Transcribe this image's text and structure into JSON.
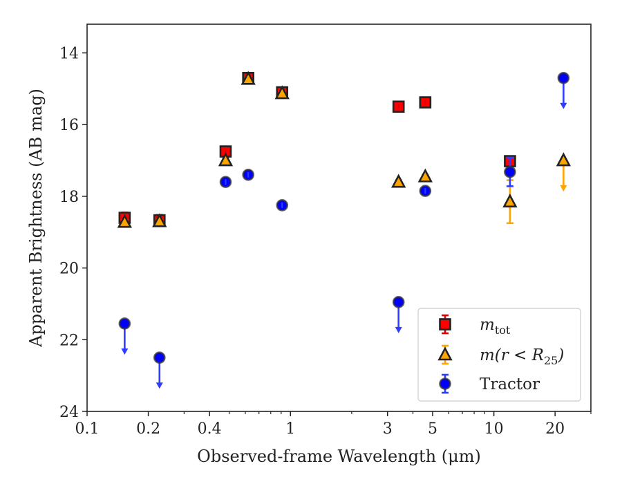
{
  "chart_data": {
    "type": "scatter",
    "xlabel": "Observed-frame Wavelength (μm)",
    "ylabel": "Apparent Brightness (AB mag)",
    "xscale": "log",
    "xlim": [
      0.1,
      30
    ],
    "ylim": [
      24,
      13.2
    ],
    "y_inverted": true,
    "x_major_ticks": [
      {
        "value": 0.1,
        "label": "0.1"
      },
      {
        "value": 0.2,
        "label": "0.2"
      },
      {
        "value": 0.4,
        "label": "0.4"
      },
      {
        "value": 1,
        "label": "1"
      },
      {
        "value": 3,
        "label": "3"
      },
      {
        "value": 5,
        "label": "5"
      },
      {
        "value": 10,
        "label": "10"
      },
      {
        "value": 20,
        "label": "20"
      }
    ],
    "x_minor_ticks": [
      0.3,
      0.5,
      0.6,
      0.7,
      0.8,
      0.9,
      2,
      4,
      6,
      7,
      8,
      9,
      30
    ],
    "y_ticks": [
      14,
      16,
      18,
      20,
      22,
      24
    ],
    "grid": false,
    "legend_position": "bottom-right",
    "series": [
      {
        "name": "m_tot",
        "legend_main": "m",
        "legend_sub": "tot",
        "marker": "square",
        "color": "#ff0000",
        "edge_color": "#222222",
        "points": [
          {
            "x": 0.153,
            "y": 18.6,
            "err": 0.15,
            "upper_limit": false
          },
          {
            "x": 0.227,
            "y": 18.67,
            "err": 0.15,
            "upper_limit": false
          },
          {
            "x": 0.48,
            "y": 16.75,
            "err": 0.05,
            "upper_limit": false
          },
          {
            "x": 0.62,
            "y": 14.7,
            "err": 0.05,
            "upper_limit": false
          },
          {
            "x": 0.91,
            "y": 15.1,
            "err": 0.05,
            "upper_limit": false
          },
          {
            "x": 3.4,
            "y": 15.5,
            "err": 0.05,
            "upper_limit": false
          },
          {
            "x": 4.6,
            "y": 15.38,
            "err": 0.05,
            "upper_limit": false
          },
          {
            "x": 12.0,
            "y": 17.02,
            "err": 0.05,
            "upper_limit": false
          }
        ]
      },
      {
        "name": "m(r < R25)",
        "legend_main": "m(r < R",
        "legend_sub": "25",
        "legend_tail": ")",
        "marker": "triangle",
        "color": "#ffa500",
        "edge_color": "#222222",
        "points": [
          {
            "x": 0.153,
            "y": 18.72,
            "err": 0.05,
            "upper_limit": false
          },
          {
            "x": 0.227,
            "y": 18.7,
            "err": 0.05,
            "upper_limit": false
          },
          {
            "x": 0.48,
            "y": 17.0,
            "err": 0.05,
            "upper_limit": false
          },
          {
            "x": 0.62,
            "y": 14.73,
            "err": 0.05,
            "upper_limit": false
          },
          {
            "x": 0.91,
            "y": 15.13,
            "err": 0.05,
            "upper_limit": false
          },
          {
            "x": 3.4,
            "y": 17.6,
            "err": 0.05,
            "upper_limit": false
          },
          {
            "x": 4.6,
            "y": 17.45,
            "err": 0.05,
            "upper_limit": false
          },
          {
            "x": 12.0,
            "y": 18.15,
            "err": 0.6,
            "upper_limit": false
          },
          {
            "x": 22.0,
            "y": 17.0,
            "err": 0,
            "upper_limit": true
          }
        ]
      },
      {
        "name": "Tractor",
        "legend_main": "Tractor",
        "marker": "circle",
        "color": "#0000ff",
        "edge_color": "#333333",
        "points": [
          {
            "x": 0.153,
            "y": 21.55,
            "err": 0,
            "upper_limit": true
          },
          {
            "x": 0.227,
            "y": 22.5,
            "err": 0,
            "upper_limit": true
          },
          {
            "x": 0.48,
            "y": 17.6,
            "err": 0.05,
            "upper_limit": false
          },
          {
            "x": 0.62,
            "y": 17.4,
            "err": 0.05,
            "upper_limit": false
          },
          {
            "x": 0.91,
            "y": 18.25,
            "err": 0.05,
            "upper_limit": false
          },
          {
            "x": 3.4,
            "y": 20.95,
            "err": 0,
            "upper_limit": true
          },
          {
            "x": 4.6,
            "y": 17.85,
            "err": 0.05,
            "upper_limit": false
          },
          {
            "x": 12.0,
            "y": 17.32,
            "err": 0.4,
            "upper_limit": false
          },
          {
            "x": 22.0,
            "y": 14.7,
            "err": 0,
            "upper_limit": true
          }
        ]
      }
    ]
  }
}
